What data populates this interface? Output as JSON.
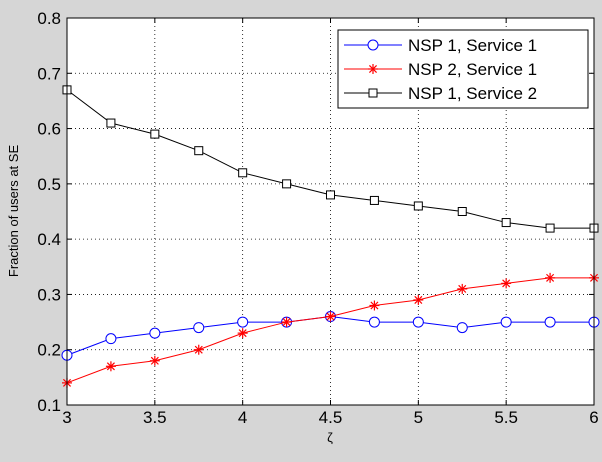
{
  "chart_data": {
    "type": "line",
    "xlabel": "ζ",
    "ylabel": "Fraction of users at SE",
    "xlim": [
      3,
      6
    ],
    "ylim": [
      0.1,
      0.8
    ],
    "xticks": [
      3,
      3.5,
      4,
      4.5,
      5,
      5.5,
      6
    ],
    "yticks": [
      0.1,
      0.2,
      0.3,
      0.4,
      0.5,
      0.6,
      0.7,
      0.8
    ],
    "x_tick_labels": [
      "3",
      "3.5",
      "4",
      "4.5",
      "5",
      "5.5",
      "6"
    ],
    "y_tick_labels": [
      "0.1",
      "0.2",
      "0.3",
      "0.4",
      "0.5",
      "0.6",
      "0.7",
      "0.8"
    ],
    "grid": true,
    "legend_position": "top-right",
    "x": [
      3,
      3.25,
      3.5,
      3.75,
      4,
      4.25,
      4.5,
      4.75,
      5,
      5.25,
      5.5,
      5.75,
      6
    ],
    "series": [
      {
        "name": "NSP 1, Service 1",
        "color": "#0000ff",
        "marker": "circle",
        "values": [
          0.19,
          0.22,
          0.23,
          0.24,
          0.25,
          0.25,
          0.26,
          0.25,
          0.25,
          0.24,
          0.25,
          0.25,
          0.25
        ]
      },
      {
        "name": "NSP 2, Service 1",
        "color": "#ff0000",
        "marker": "asterisk",
        "values": [
          0.14,
          0.17,
          0.18,
          0.2,
          0.23,
          0.25,
          0.26,
          0.28,
          0.29,
          0.31,
          0.32,
          0.33,
          0.33
        ]
      },
      {
        "name": "NSP 1, Service 2",
        "color": "#000000",
        "marker": "square",
        "values": [
          0.67,
          0.61,
          0.59,
          0.56,
          0.52,
          0.5,
          0.48,
          0.47,
          0.46,
          0.45,
          0.43,
          0.42,
          0.42
        ]
      }
    ]
  }
}
